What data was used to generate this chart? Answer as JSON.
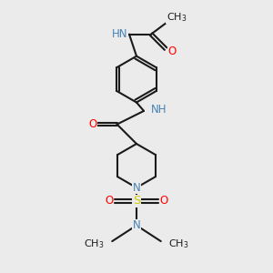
{
  "background_color": "#ebebeb",
  "bond_color": "#1a1a1a",
  "bond_width": 1.5,
  "N_color": "#4682B4",
  "O_color": "#FF0000",
  "S_color": "#cccc00",
  "font_size": 8.5,
  "figsize": [
    3.0,
    3.0
  ],
  "dpi": 100,
  "xlim": [
    0,
    10
  ],
  "ylim": [
    0,
    11
  ]
}
